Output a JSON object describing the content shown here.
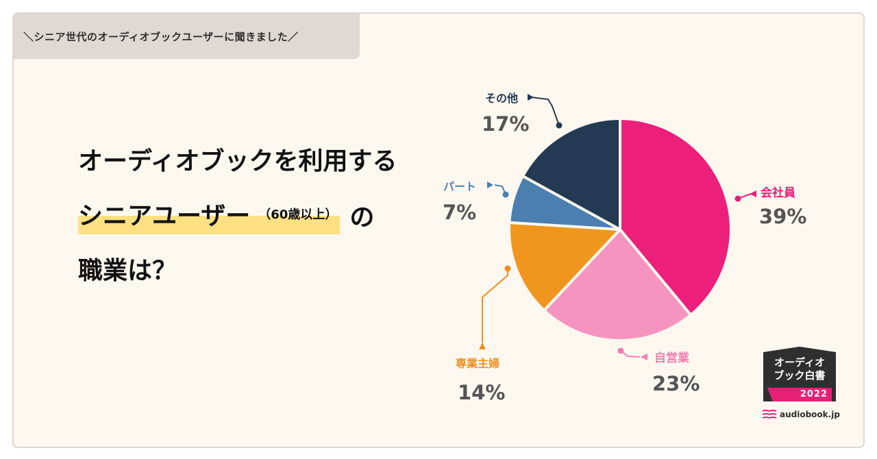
{
  "header": {
    "tag": "＼シニア世代のオーディオブックユーザーに聞きました／"
  },
  "headline": {
    "line1": "オーディオブックを利用する",
    "line2_main": "シニアユーザー",
    "line2_sub": "（60歳以上）",
    "line2_tail": "の",
    "line3": "職業は？"
  },
  "chart_data": {
    "type": "pie",
    "slices": [
      {
        "label": "会社員",
        "value": 39,
        "display": "39%",
        "color": "#ec1f7a",
        "label_color": "#e81f77"
      },
      {
        "label": "自営業",
        "value": 23,
        "display": "23%",
        "color": "#f595bf",
        "label_color": "#f07fb0"
      },
      {
        "label": "専業主婦",
        "value": 14,
        "display": "14%",
        "color": "#f0961f",
        "label_color": "#ee8e1e"
      },
      {
        "label": "パート",
        "value": 7,
        "display": "7%",
        "color": "#4a7fb0",
        "label_color": "#4a7fb0"
      },
      {
        "label": "その他",
        "value": 17,
        "display": "17%",
        "color": "#233a52",
        "label_color": "#233a52"
      }
    ],
    "start_angle_deg": 0,
    "direction": "clockwise",
    "value_color": "#555555"
  },
  "badge": {
    "line1": "オーディオ",
    "line2": "ブック白書",
    "year": "2022"
  },
  "brand": {
    "name": "audiobook.jp",
    "icon": "book-stack-icon"
  }
}
